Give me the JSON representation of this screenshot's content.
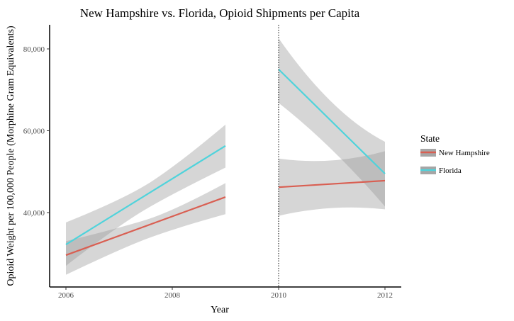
{
  "chart_data": {
    "type": "line",
    "title": "New Hampshire vs. Florida, Opioid Shipments per Capita",
    "xlabel": "Year",
    "ylabel": "Opioid Weight per 100,000 People (Morphine Gram Equivalents)",
    "xlim": [
      2005.85,
      2012.3
    ],
    "ylim": [
      21800,
      85900
    ],
    "x_ticks": [
      2006,
      2008,
      2010,
      2012
    ],
    "x_tick_labels": [
      "2006",
      "2008",
      "2010",
      "2012"
    ],
    "y_ticks": [
      40000,
      60000,
      80000
    ],
    "y_tick_labels": [
      "40,000",
      "60,000",
      "80,000"
    ],
    "grid": false,
    "vline": {
      "x": 2010,
      "style": "dotted"
    },
    "legend": {
      "title": "State",
      "placement": "right",
      "entries": [
        "New Hampshire",
        "Florida"
      ]
    },
    "series": [
      {
        "name": "New Hampshire",
        "color": "#d95f52",
        "segments": [
          {
            "x": [
              2006,
              2009
            ],
            "y": [
              29600,
              43800
            ],
            "ci_upper": [
              [
                2006,
                33000
              ],
              [
                2007,
                36200
              ],
              [
                2008,
                40200
              ],
              [
                2009,
                47200
              ]
            ],
            "ci_lower": [
              [
                2006,
                24800
              ],
              [
                2007,
                31000
              ],
              [
                2008,
                36000
              ],
              [
                2009,
                39600
              ]
            ]
          },
          {
            "x": [
              2010,
              2012
            ],
            "y": [
              46200,
              47800
            ],
            "ci_upper": [
              [
                2010,
                53200
              ],
              [
                2011,
                51400
              ],
              [
                2012,
                55000
              ]
            ],
            "ci_lower": [
              [
                2010,
                39200
              ],
              [
                2011,
                42200
              ],
              [
                2012,
                40800
              ]
            ]
          }
        ]
      },
      {
        "name": "Florida",
        "color": "#4fd3db",
        "segments": [
          {
            "x": [
              2006,
              2009
            ],
            "y": [
              32200,
              56300
            ],
            "ci_upper": [
              [
                2006,
                37600
              ],
              [
                2007,
                42800
              ],
              [
                2008,
                50600
              ],
              [
                2009,
                61500
              ]
            ],
            "ci_lower": [
              [
                2006,
                27000
              ],
              [
                2007,
                37000
              ],
              [
                2008,
                44600
              ],
              [
                2009,
                51000
              ]
            ]
          },
          {
            "x": [
              2010,
              2012
            ],
            "y": [
              75000,
              49500
            ],
            "ci_upper": [
              [
                2010,
                82600
              ],
              [
                2011,
                64000
              ],
              [
                2012,
                57300
              ]
            ],
            "ci_lower": [
              [
                2010,
                66800
              ],
              [
                2011,
                56600
              ],
              [
                2012,
                41500
              ]
            ]
          }
        ]
      }
    ]
  }
}
